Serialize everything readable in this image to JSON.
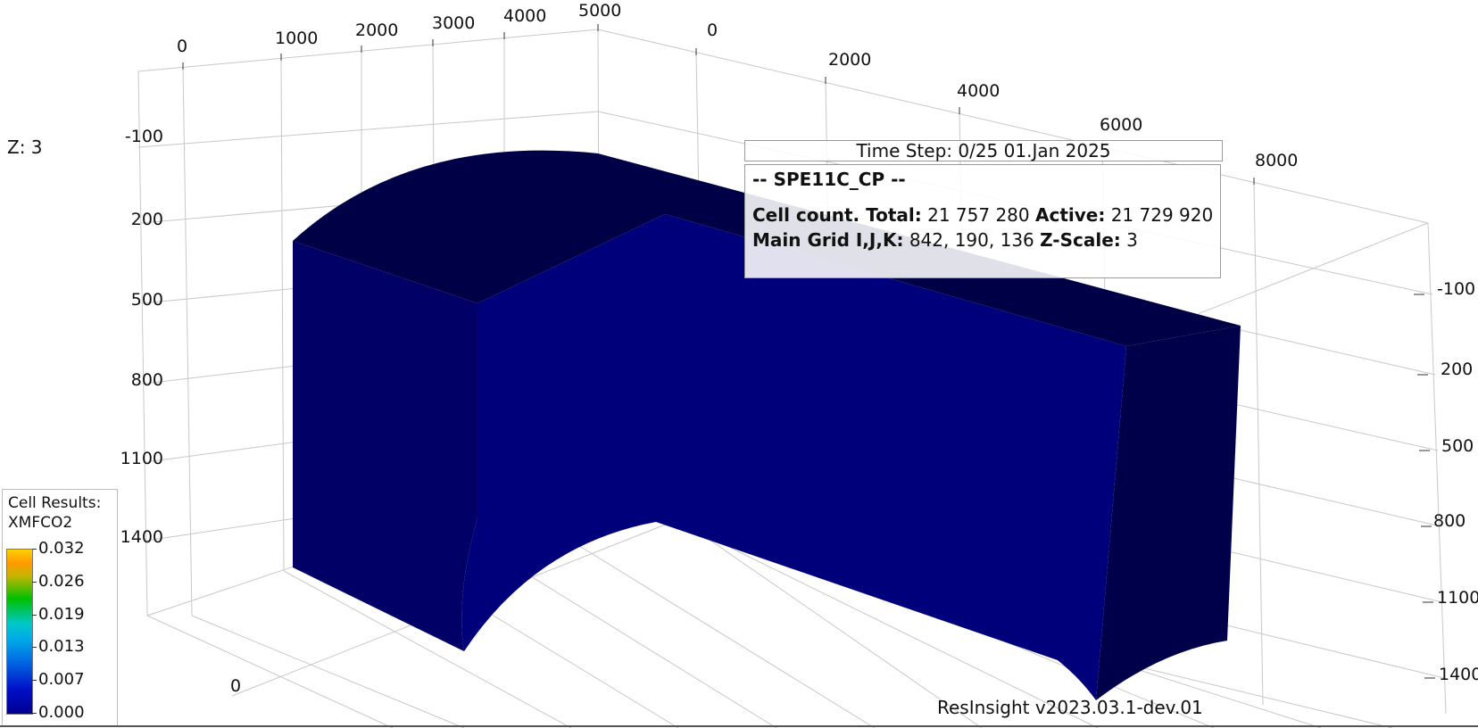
{
  "view": {
    "z_scale_label": "Z: 3",
    "time_step": "Time Step: 0/25 01.Jan 2025",
    "info": {
      "case_line": "-- SPE11C_CP --",
      "cell_count_label": "Cell count. Total:",
      "cell_count_total": "21 757 280",
      "active_label": "Active:",
      "active_count": "21 729 920",
      "main_grid_label": "Main Grid I,J,K:",
      "main_grid_value": "842, 190, 136",
      "zscale_label": "Z-Scale:",
      "zscale_value": "3"
    },
    "version": "ResInsight v2023.03.1-dev.01"
  },
  "legend": {
    "title_line1": "Cell Results:",
    "title_line2": "XMFCO2",
    "ticks": [
      "0.032",
      "0.026",
      "0.019",
      "0.013",
      "0.007",
      "0.000"
    ],
    "min": 0.0,
    "max": 0.032
  },
  "axes": {
    "top_left_x": [
      "0",
      "1000",
      "2000",
      "3000",
      "4000",
      "5000"
    ],
    "top_right_y": [
      "0",
      "2000",
      "4000",
      "6000",
      "8000"
    ],
    "left_depth": [
      "-100",
      "200",
      "500",
      "800",
      "1100",
      "1400"
    ],
    "right_depth": [
      "-100",
      "200",
      "500",
      "800",
      "1100",
      "1400"
    ],
    "bottom_left": [
      "0"
    ]
  },
  "colors": {
    "model_front": "#00007a",
    "model_side": "#00004e",
    "model_top": "#000048",
    "grid_line": "#c4c4c4",
    "background": "#ffffff"
  }
}
